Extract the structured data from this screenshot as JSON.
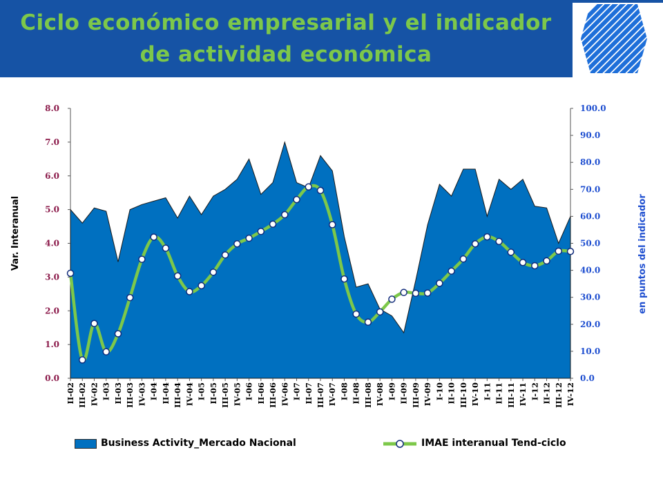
{
  "header": {
    "title_line1": "Ciclo económico empresarial y el indicador",
    "title_line2": "de actividad económica"
  },
  "colors": {
    "header_bg": "#1653A5",
    "title": "#7DC84A",
    "area_fill": "#0070C0",
    "line": "#7DC84A",
    "left_axis_text": "#8B1A4A",
    "right_axis_text": "#1F4FD0",
    "logo": "#1E6FD9"
  },
  "logo": {
    "icon": "striped-hexagon-logo-icon"
  },
  "chart_data": {
    "type": "area",
    "title": "",
    "xlabel": "",
    "ylabel": "Var. Interanual",
    "y2label": "en puntos del indicador",
    "ylim": [
      0,
      8
    ],
    "y2lim": [
      0,
      100
    ],
    "yticks": [
      "0.0",
      "1.0",
      "2.0",
      "3.0",
      "4.0",
      "5.0",
      "6.0",
      "7.0",
      "8.0"
    ],
    "y2ticks": [
      "0.0",
      "10.0",
      "20.0",
      "30.0",
      "40.0",
      "50.0",
      "60.0",
      "70.0",
      "80.0",
      "90.0",
      "100.0"
    ],
    "grid": false,
    "legend_position": "bottom",
    "categories": [
      "II-02",
      "III-02",
      "IV-02",
      "I-03",
      "II-03",
      "III-03",
      "IV-03",
      "I-04",
      "II-04",
      "III-04",
      "IV-04",
      "I-05",
      "II-05",
      "III-05",
      "IV-05",
      "I-06",
      "II-06",
      "III-06",
      "IV-06",
      "I-07",
      "II-07",
      "III-07",
      "IV-07",
      "I-08",
      "II-08",
      "III-08",
      "IV-08",
      "I-09",
      "II-09",
      "III-09",
      "IV-09",
      "I-10",
      "II-10",
      "III-10",
      "IV-10",
      "I-11",
      "II-11",
      "III-11",
      "IV-11",
      "I-12",
      "II-12",
      "III-12",
      "IV-12"
    ],
    "series": [
      {
        "name": "Business Activity_Mercado Nacional",
        "type": "area",
        "axis": "left",
        "values": [
          5.0,
          4.6,
          5.05,
          4.95,
          3.45,
          5.0,
          5.15,
          5.25,
          5.35,
          4.75,
          5.4,
          4.85,
          5.4,
          5.6,
          5.9,
          6.5,
          5.45,
          5.8,
          7.0,
          5.8,
          5.65,
          6.6,
          6.15,
          4.2,
          2.7,
          2.8,
          2.05,
          1.85,
          1.35,
          2.9,
          4.55,
          5.75,
          5.4,
          6.2,
          6.2,
          4.8,
          5.9,
          5.6,
          5.9,
          5.1,
          5.05,
          4.0,
          4.8
        ]
      },
      {
        "name": "IMAE interanual Tend-ciclo",
        "type": "line",
        "axis": "right",
        "values": [
          38.9,
          6.8,
          20.3,
          9.8,
          16.5,
          29.9,
          44.1,
          52.3,
          48.2,
          37.9,
          32.1,
          34.3,
          39.3,
          45.7,
          49.8,
          51.9,
          54.4,
          57.1,
          60.6,
          66.2,
          70.9,
          69.6,
          56.9,
          36.8,
          23.8,
          20.8,
          24.6,
          29.3,
          31.8,
          31.5,
          31.6,
          35.2,
          39.7,
          44.2,
          49.8,
          52.4,
          50.7,
          46.7,
          42.9,
          41.7,
          43.5,
          47.1,
          47.0
        ]
      }
    ]
  }
}
